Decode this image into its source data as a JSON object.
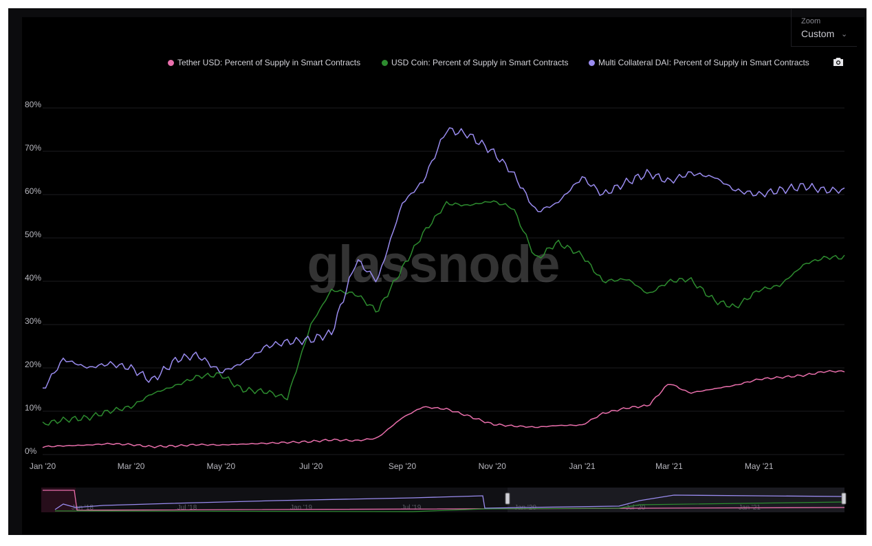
{
  "zoom": {
    "label": "Zoom",
    "value": "Custom",
    "chevron": "chevron-down-icon"
  },
  "toolbar": {
    "camera_icon": "camera-icon"
  },
  "watermark": "glassnode",
  "colors": {
    "tether": "#ea6fac",
    "usdc": "#2d8c2f",
    "dai": "#9a8cf0",
    "background": "#000000",
    "grid": "#1b1b1f",
    "text": "#b9b9c0"
  },
  "navigator": {
    "labels": [
      "Jan '18",
      "Jul '18",
      "Jan '19",
      "Jul '19",
      "Jan '20",
      "Jul '20",
      "Jan '21"
    ]
  },
  "chart_data": {
    "type": "line",
    "title": "",
    "xlabel": "",
    "ylabel": "",
    "ylim": [
      0,
      80
    ],
    "yticks": [
      "0%",
      "10%",
      "20%",
      "30%",
      "40%",
      "50%",
      "60%",
      "70%",
      "80%"
    ],
    "xticks": [
      "Jan '20",
      "Mar '20",
      "May '20",
      "Jul '20",
      "Sep '20",
      "Nov '20",
      "Jan '21",
      "Mar '21",
      "May '21"
    ],
    "grid": true,
    "legend": "top",
    "x": [
      "2020-01-01",
      "2020-01-15",
      "2020-02-01",
      "2020-02-15",
      "2020-03-01",
      "2020-03-15",
      "2020-04-01",
      "2020-04-15",
      "2020-05-01",
      "2020-05-15",
      "2020-06-01",
      "2020-06-15",
      "2020-07-01",
      "2020-07-15",
      "2020-08-01",
      "2020-08-15",
      "2020-09-01",
      "2020-09-15",
      "2020-10-01",
      "2020-10-15",
      "2020-11-01",
      "2020-11-15",
      "2020-12-01",
      "2020-12-15",
      "2021-01-01",
      "2021-01-15",
      "2021-02-01",
      "2021-02-15",
      "2021-03-01",
      "2021-03-15",
      "2021-04-01",
      "2021-04-15",
      "2021-05-01",
      "2021-05-15",
      "2021-06-01",
      "2021-06-15"
    ],
    "series": [
      {
        "name": "Tether USD: Percent of Supply in Smart Contracts",
        "values": [
          1.8,
          2.0,
          2.2,
          2.5,
          2.3,
          1.8,
          2.0,
          2.3,
          2.2,
          2.4,
          2.6,
          2.8,
          3.0,
          3.4,
          3.2,
          3.8,
          8.5,
          11.0,
          10.5,
          9.0,
          7.0,
          6.6,
          6.3,
          6.7,
          6.8,
          9.5,
          10.8,
          11.3,
          16.5,
          14.2,
          15.2,
          16.0,
          17.4,
          17.8,
          18.3,
          19.2
        ]
      },
      {
        "name": "USD Coin: Percent of Supply in Smart Contracts",
        "values": [
          7.0,
          8.0,
          8.5,
          10.0,
          11.0,
          14.0,
          16.0,
          18.0,
          18.5,
          15.0,
          14.5,
          13.0,
          30.0,
          38.0,
          37.0,
          33.0,
          43.0,
          51.0,
          58.0,
          57.5,
          58.5,
          57.0,
          45.0,
          49.0,
          46.0,
          40.0,
          40.5,
          37.0,
          40.0,
          40.5,
          35.5,
          34.0,
          38.0,
          39.0,
          44.0,
          45.5
        ]
      },
      {
        "name": "Multi Collateral DAI: Percent of Supply in Smart Contracts",
        "values": [
          15.0,
          22.0,
          20.0,
          21.0,
          20.0,
          17.0,
          22.0,
          23.0,
          19.0,
          21.0,
          25.0,
          26.0,
          26.5,
          28.0,
          45.0,
          40.0,
          58.0,
          63.0,
          75.0,
          74.0,
          70.0,
          65.0,
          56.0,
          58.0,
          64.0,
          60.0,
          63.0,
          65.0,
          63.0,
          65.0,
          64.0,
          61.0,
          60.0,
          61.0,
          62.0,
          61.0
        ]
      }
    ]
  },
  "legend": {
    "tether": "Tether USD: Percent of Supply in Smart Contracts",
    "usdc": "USD Coin: Percent of Supply in Smart Contracts",
    "dai": "Multi Collateral DAI: Percent of Supply in Smart Contracts"
  }
}
